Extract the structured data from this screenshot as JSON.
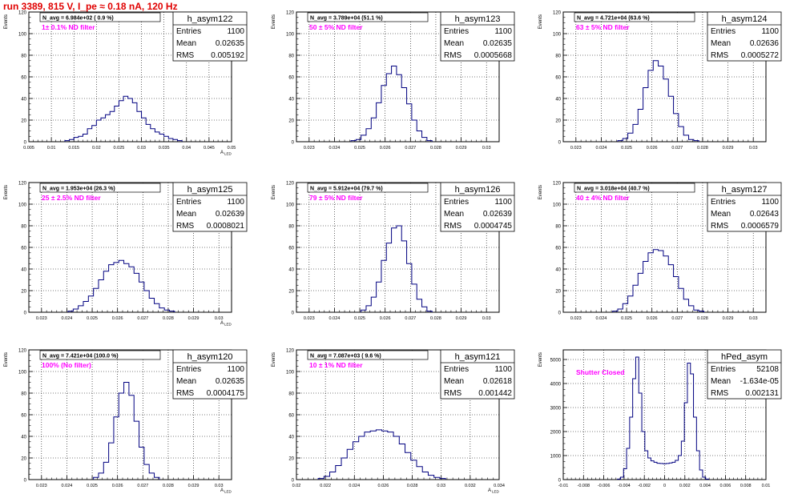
{
  "header": {
    "title": "run 3389,   815 V, I_pe ≈ 0.18 nA, 120 Hz"
  },
  "colors": {
    "title": "#e00000",
    "histogram": "#000080",
    "annotation": "#ff00ff",
    "grid": "#000000"
  },
  "chart_data": [
    {
      "type": "histogram",
      "name": "h_asym122",
      "ylabel": "Events",
      "xlabel": "A_LED",
      "ylim": [
        0,
        120
      ],
      "yticks": [
        "0",
        "20",
        "40",
        "60",
        "80",
        "100",
        "120"
      ],
      "xlim": [
        0.005,
        0.05
      ],
      "xticks": [
        "0.005",
        "0.01",
        "0.015",
        "0.02",
        "0.025",
        "0.03",
        "0.035",
        "0.04",
        "0.045",
        "0.05"
      ],
      "stats": {
        "entries_label": "Entries",
        "entries": "1100",
        "mean_label": "Mean",
        "mean": "0.02635",
        "rms_label": "RMS",
        "rms": "0.005192"
      },
      "navg": "N_avg = 6.984e+02 ( 0.9 %)",
      "annotation": "1± 0.1% ND filter",
      "peak": {
        "center": 0.0264,
        "height": 42
      },
      "bins": [
        [
          0.0135,
          1
        ],
        [
          0.0145,
          2
        ],
        [
          0.0155,
          4
        ],
        [
          0.0165,
          5
        ],
        [
          0.0175,
          7
        ],
        [
          0.0185,
          12
        ],
        [
          0.0195,
          15
        ],
        [
          0.0205,
          20
        ],
        [
          0.0215,
          22
        ],
        [
          0.0225,
          25
        ],
        [
          0.0235,
          28
        ],
        [
          0.0245,
          33
        ],
        [
          0.0255,
          38
        ],
        [
          0.0265,
          42
        ],
        [
          0.0275,
          40
        ],
        [
          0.0285,
          36
        ],
        [
          0.0295,
          28
        ],
        [
          0.0305,
          22
        ],
        [
          0.0315,
          16
        ],
        [
          0.0325,
          12
        ],
        [
          0.0335,
          9
        ],
        [
          0.0345,
          7
        ],
        [
          0.0355,
          5
        ],
        [
          0.0365,
          3
        ],
        [
          0.0375,
          2
        ],
        [
          0.0385,
          1
        ]
      ]
    },
    {
      "type": "histogram",
      "name": "h_asym123",
      "ylabel": "Events",
      "xlabel": "",
      "ylim": [
        0,
        120
      ],
      "yticks": [
        "0",
        "20",
        "40",
        "60",
        "80",
        "100",
        "120"
      ],
      "xlim": [
        0.0225,
        0.0305
      ],
      "xticks": [
        "0.023",
        "0.024",
        "0.025",
        "0.026",
        "0.027",
        "0.028",
        "0.029",
        "0.03"
      ],
      "stats": {
        "entries_label": "Entries",
        "entries": "1100",
        "mean_label": "Mean",
        "mean": "0.02635",
        "rms_label": "RMS",
        "rms": "0.0005668"
      },
      "navg": "N_avg = 3.789e+04 (51.1 %)",
      "annotation": "50 ± 5% ND filter",
      "peak": {
        "center": 0.02635,
        "height": 70
      },
      "bins": [
        [
          0.02475,
          1
        ],
        [
          0.02495,
          2
        ],
        [
          0.02515,
          6
        ],
        [
          0.02535,
          12
        ],
        [
          0.02555,
          22
        ],
        [
          0.02575,
          36
        ],
        [
          0.02595,
          52
        ],
        [
          0.02615,
          63
        ],
        [
          0.02635,
          70
        ],
        [
          0.02655,
          62
        ],
        [
          0.02675,
          50
        ],
        [
          0.02695,
          35
        ],
        [
          0.02715,
          20
        ],
        [
          0.02735,
          10
        ],
        [
          0.02755,
          4
        ],
        [
          0.02775,
          1
        ]
      ]
    },
    {
      "type": "histogram",
      "name": "h_asym124",
      "ylabel": "Events",
      "xlabel": "",
      "ylim": [
        0,
        120
      ],
      "yticks": [
        "0",
        "20",
        "40",
        "60",
        "80",
        "100",
        "120"
      ],
      "xlim": [
        0.0225,
        0.0305
      ],
      "xticks": [
        "0.023",
        "0.024",
        "0.025",
        "0.026",
        "0.027",
        "0.028",
        "0.029",
        "0.03"
      ],
      "stats": {
        "entries_label": "Entries",
        "entries": "1100",
        "mean_label": "Mean",
        "mean": "0.02636",
        "rms_label": "RMS",
        "rms": "0.0005272"
      },
      "navg": "N_avg = 4.721e+04 (63.6 %)",
      "annotation": "63 ± 5% ND filter",
      "peak": {
        "center": 0.0263,
        "height": 75
      },
      "bins": [
        [
          0.02475,
          1
        ],
        [
          0.02495,
          3
        ],
        [
          0.02515,
          8
        ],
        [
          0.02535,
          16
        ],
        [
          0.02555,
          30
        ],
        [
          0.02575,
          50
        ],
        [
          0.02595,
          66
        ],
        [
          0.02615,
          75
        ],
        [
          0.02635,
          70
        ],
        [
          0.02655,
          58
        ],
        [
          0.02675,
          42
        ],
        [
          0.02695,
          26
        ],
        [
          0.02715,
          14
        ],
        [
          0.02735,
          6
        ],
        [
          0.02755,
          2
        ],
        [
          0.02775,
          1
        ]
      ]
    },
    {
      "type": "histogram",
      "name": "h_asym125",
      "ylabel": "Events",
      "xlabel": "A_LED",
      "ylim": [
        0,
        120
      ],
      "yticks": [
        "0",
        "20",
        "40",
        "60",
        "80",
        "100",
        "120"
      ],
      "xlim": [
        0.0225,
        0.0305
      ],
      "xticks": [
        "0.023",
        "0.024",
        "0.025",
        "0.026",
        "0.027",
        "0.028",
        "0.029",
        "0.03"
      ],
      "stats": {
        "entries_label": "Entries",
        "entries": "1100",
        "mean_label": "Mean",
        "mean": "0.02639",
        "rms_label": "RMS",
        "rms": "0.0008021"
      },
      "navg": "N_avg = 1.953e+04 (26.3 %)",
      "annotation": "25 ± 2.5% ND filter",
      "peak": {
        "center": 0.0264,
        "height": 48
      },
      "bins": [
        [
          0.02415,
          1
        ],
        [
          0.02435,
          3
        ],
        [
          0.02455,
          6
        ],
        [
          0.02475,
          10
        ],
        [
          0.02495,
          15
        ],
        [
          0.02515,
          22
        ],
        [
          0.02535,
          30
        ],
        [
          0.02555,
          38
        ],
        [
          0.02575,
          44
        ],
        [
          0.02595,
          46
        ],
        [
          0.02615,
          48
        ],
        [
          0.02635,
          45
        ],
        [
          0.02655,
          42
        ],
        [
          0.02675,
          36
        ],
        [
          0.02695,
          28
        ],
        [
          0.02715,
          20
        ],
        [
          0.02735,
          13
        ],
        [
          0.02755,
          8
        ],
        [
          0.02775,
          4
        ],
        [
          0.02795,
          2
        ],
        [
          0.02815,
          1
        ]
      ]
    },
    {
      "type": "histogram",
      "name": "h_asym126",
      "ylabel": "Events",
      "xlabel": "",
      "ylim": [
        0,
        120
      ],
      "yticks": [
        "0",
        "20",
        "40",
        "60",
        "80",
        "100",
        "120"
      ],
      "xlim": [
        0.0225,
        0.0305
      ],
      "xticks": [
        "0.023",
        "0.024",
        "0.025",
        "0.026",
        "0.027",
        "0.028",
        "0.029",
        "0.03"
      ],
      "stats": {
        "entries_label": "Entries",
        "entries": "1100",
        "mean_label": "Mean",
        "mean": "0.02639",
        "rms_label": "RMS",
        "rms": "0.0004745"
      },
      "navg": "N_avg = 5.912e+04 (79.7 %)",
      "annotation": "79 ± 5% ND filter",
      "peak": {
        "center": 0.02645,
        "height": 80
      },
      "bins": [
        [
          0.02515,
          2
        ],
        [
          0.02535,
          6
        ],
        [
          0.02555,
          14
        ],
        [
          0.02575,
          28
        ],
        [
          0.02595,
          48
        ],
        [
          0.02615,
          64
        ],
        [
          0.02635,
          78
        ],
        [
          0.02655,
          80
        ],
        [
          0.02675,
          66
        ],
        [
          0.02695,
          45
        ],
        [
          0.02715,
          26
        ],
        [
          0.02735,
          12
        ],
        [
          0.02755,
          5
        ],
        [
          0.02775,
          1
        ]
      ]
    },
    {
      "type": "histogram",
      "name": "h_asym127",
      "ylabel": "Events",
      "xlabel": "",
      "ylim": [
        0,
        120
      ],
      "yticks": [
        "0",
        "20",
        "40",
        "60",
        "80",
        "100",
        "120"
      ],
      "xlim": [
        0.0225,
        0.0305
      ],
      "xticks": [
        "0.023",
        "0.024",
        "0.025",
        "0.026",
        "0.027",
        "0.028",
        "0.029",
        "0.03"
      ],
      "stats": {
        "entries_label": "Entries",
        "entries": "1100",
        "mean_label": "Mean",
        "mean": "0.02643",
        "rms_label": "RMS",
        "rms": "0.0006579"
      },
      "navg": "N_avg = 3.018e+04 (40.7 %)",
      "annotation": "40 ± 4% ND filter",
      "peak": {
        "center": 0.0264,
        "height": 58
      },
      "bins": [
        [
          0.02455,
          1
        ],
        [
          0.02475,
          3
        ],
        [
          0.02495,
          8
        ],
        [
          0.02515,
          15
        ],
        [
          0.02535,
          25
        ],
        [
          0.02555,
          36
        ],
        [
          0.02575,
          47
        ],
        [
          0.02595,
          55
        ],
        [
          0.02615,
          58
        ],
        [
          0.02635,
          57
        ],
        [
          0.02655,
          52
        ],
        [
          0.02675,
          44
        ],
        [
          0.02695,
          33
        ],
        [
          0.02715,
          22
        ],
        [
          0.02735,
          12
        ],
        [
          0.02755,
          6
        ],
        [
          0.02775,
          2
        ],
        [
          0.02795,
          1
        ]
      ]
    },
    {
      "type": "histogram",
      "name": "h_asym120",
      "ylabel": "Events",
      "xlabel": "A_LED",
      "ylim": [
        0,
        120
      ],
      "yticks": [
        "0",
        "20",
        "40",
        "60",
        "80",
        "100",
        "120"
      ],
      "xlim": [
        0.0225,
        0.0305
      ],
      "xticks": [
        "0.023",
        "0.024",
        "0.025",
        "0.026",
        "0.027",
        "0.028",
        "0.029",
        "0.03"
      ],
      "stats": {
        "entries_label": "Entries",
        "entries": "1100",
        "mean_label": "Mean",
        "mean": "0.02635",
        "rms_label": "RMS",
        "rms": "0.0004175"
      },
      "navg": "N_avg = 7.421e+04 (100.0 %)",
      "annotation": "100% (No filter)",
      "peak": {
        "center": 0.02635,
        "height": 90
      },
      "bins": [
        [
          0.02515,
          2
        ],
        [
          0.02535,
          6
        ],
        [
          0.02555,
          16
        ],
        [
          0.02575,
          34
        ],
        [
          0.02595,
          58
        ],
        [
          0.02615,
          80
        ],
        [
          0.02635,
          90
        ],
        [
          0.02655,
          78
        ],
        [
          0.02675,
          54
        ],
        [
          0.02695,
          30
        ],
        [
          0.02715,
          14
        ],
        [
          0.02735,
          6
        ],
        [
          0.02755,
          2
        ]
      ]
    },
    {
      "type": "histogram",
      "name": "h_asym121",
      "ylabel": "Events",
      "xlabel": "A_LED",
      "ylim": [
        0,
        120
      ],
      "yticks": [
        "0",
        "20",
        "40",
        "60",
        "80",
        "100",
        "120"
      ],
      "xlim": [
        0.02,
        0.034
      ],
      "xticks": [
        "0.02",
        "0.022",
        "0.024",
        "0.026",
        "0.028",
        "0.03",
        "0.032",
        "0.034"
      ],
      "stats": {
        "entries_label": "Entries",
        "entries": "1100",
        "mean_label": "Mean",
        "mean": "0.02618",
        "rms_label": "RMS",
        "rms": "0.001442"
      },
      "navg": "N_avg = 7.087e+03 ( 9.6 %)",
      "annotation": "10 ± 1% ND filter",
      "peak": {
        "center": 0.0262,
        "height": 46
      },
      "bins": [
        [
          0.0217,
          1
        ],
        [
          0.0221,
          3
        ],
        [
          0.0225,
          7
        ],
        [
          0.0229,
          13
        ],
        [
          0.0233,
          20
        ],
        [
          0.0237,
          28
        ],
        [
          0.0241,
          35
        ],
        [
          0.0245,
          40
        ],
        [
          0.0249,
          44
        ],
        [
          0.0253,
          45
        ],
        [
          0.0257,
          46
        ],
        [
          0.0261,
          45
        ],
        [
          0.0265,
          44
        ],
        [
          0.0269,
          40
        ],
        [
          0.0273,
          33
        ],
        [
          0.0277,
          25
        ],
        [
          0.0281,
          18
        ],
        [
          0.0285,
          12
        ],
        [
          0.0289,
          7
        ],
        [
          0.0293,
          4
        ],
        [
          0.0297,
          2
        ],
        [
          0.0301,
          1
        ]
      ]
    },
    {
      "type": "histogram",
      "name": "hPed_asym",
      "ylabel": "Events",
      "xlabel": "",
      "ylim": [
        0,
        5400
      ],
      "yticks": [
        "0",
        "1000",
        "2000",
        "3000",
        "4000",
        "5000"
      ],
      "xlim": [
        -0.01,
        0.01
      ],
      "xticks": [
        "-0.01",
        "-0.008",
        "-0.006",
        "-0.004",
        "-0.002",
        "0",
        "0.002",
        "0.004",
        "0.006",
        "0.008",
        "0.01"
      ],
      "stats": {
        "entries_label": "Entries",
        "entries": "52108",
        "mean_label": "Mean",
        "mean": "-1.634e-05",
        "rms_label": "RMS",
        "rms": "0.002131"
      },
      "navg": "",
      "annotation": "Shutter Closed",
      "bins": [
        [
          -0.0045,
          20
        ],
        [
          -0.0042,
          100
        ],
        [
          -0.0039,
          450
        ],
        [
          -0.0036,
          1300
        ],
        [
          -0.0033,
          2600
        ],
        [
          -0.003,
          4200
        ],
        [
          -0.0027,
          5100
        ],
        [
          -0.0024,
          3600
        ],
        [
          -0.0021,
          2000
        ],
        [
          -0.0018,
          1200
        ],
        [
          -0.0015,
          900
        ],
        [
          -0.0012,
          780
        ],
        [
          -0.0009,
          720
        ],
        [
          -0.0006,
          680
        ],
        [
          -0.0003,
          670
        ],
        [
          0.0,
          660
        ],
        [
          0.0003,
          670
        ],
        [
          0.0006,
          690
        ],
        [
          0.0009,
          720
        ],
        [
          0.0012,
          800
        ],
        [
          0.0015,
          1000
        ],
        [
          0.0018,
          1600
        ],
        [
          0.0021,
          3200
        ],
        [
          0.0024,
          4850
        ],
        [
          0.0027,
          4400
        ],
        [
          0.003,
          2600
        ],
        [
          0.0033,
          1200
        ],
        [
          0.0036,
          400
        ],
        [
          0.0039,
          100
        ],
        [
          0.0042,
          20
        ]
      ]
    }
  ]
}
